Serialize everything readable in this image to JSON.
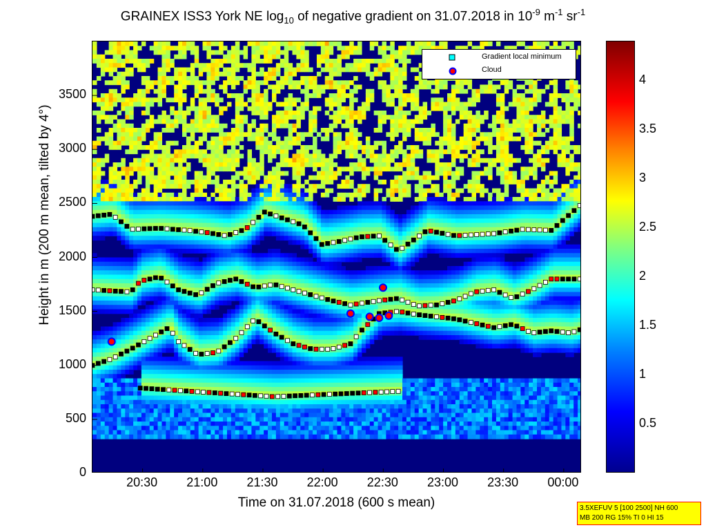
{
  "title_parts": {
    "pre": "GRAINEX ISS3 York NE log",
    "sub1": "10",
    "mid": " of negative gradient on 31.07.2018 in 10",
    "sup1": "-9",
    "mid2": " m",
    "sup2": "-1",
    "mid3": " sr",
    "sup3": "-1"
  },
  "chart_data": {
    "type": "heatmap",
    "xlabel": "Time on 31.07.2018 (600 s mean)",
    "ylabel": "Height in m (200 m mean, tilted by 4°)",
    "x_ticks": [
      "20:30",
      "21:00",
      "21:30",
      "22:00",
      "22:30",
      "23:00",
      "23:30",
      "00:00"
    ],
    "x_range": [
      "20:05",
      "00:09"
    ],
    "y_ticks": [
      0,
      500,
      1000,
      1500,
      2000,
      2500,
      3000,
      3500
    ],
    "y_range": [
      0,
      4000
    ],
    "colorbar": {
      "ticks": [
        0.5,
        1,
        1.5,
        2,
        2.5,
        3,
        3.5,
        4
      ],
      "range": [
        0,
        4.4
      ],
      "colormap": "jet"
    },
    "legend": {
      "placement": "top-right",
      "entries": [
        {
          "label": "Gradient local minimum",
          "marker": "square",
          "color": "#00ffff"
        },
        {
          "label": "Cloud",
          "marker": "circle",
          "color": "#ff0000",
          "edge": "#0000ff"
        }
      ]
    },
    "gradient_minimum_layers": [
      {
        "name": "layer_1",
        "points": [
          [
            0,
            1000
          ],
          [
            10,
            1060
          ],
          [
            20,
            1150
          ],
          [
            30,
            1250
          ],
          [
            40,
            1350
          ],
          [
            45,
            1220
          ],
          [
            55,
            1100
          ],
          [
            65,
            1120
          ],
          [
            75,
            1250
          ],
          [
            85,
            1430
          ],
          [
            95,
            1300
          ],
          [
            105,
            1200
          ],
          [
            115,
            1150
          ],
          [
            125,
            1150
          ],
          [
            135,
            1200
          ],
          [
            140,
            1310
          ],
          [
            150,
            1480
          ],
          [
            160,
            1500
          ],
          [
            170,
            1470
          ],
          [
            180,
            1450
          ],
          [
            190,
            1430
          ],
          [
            200,
            1390
          ],
          [
            210,
            1350
          ],
          [
            220,
            1380
          ],
          [
            230,
            1300
          ],
          [
            240,
            1320
          ],
          [
            250,
            1300
          ],
          [
            255,
            1330
          ]
        ]
      },
      {
        "name": "layer_2",
        "points": [
          [
            0,
            1700
          ],
          [
            10,
            1690
          ],
          [
            20,
            1680
          ],
          [
            25,
            1780
          ],
          [
            35,
            1820
          ],
          [
            45,
            1700
          ],
          [
            55,
            1650
          ],
          [
            65,
            1760
          ],
          [
            75,
            1800
          ],
          [
            85,
            1720
          ],
          [
            95,
            1750
          ],
          [
            105,
            1700
          ],
          [
            115,
            1650
          ],
          [
            125,
            1600
          ],
          [
            135,
            1560
          ],
          [
            150,
            1600
          ],
          [
            160,
            1620
          ],
          [
            170,
            1550
          ],
          [
            180,
            1560
          ],
          [
            190,
            1600
          ],
          [
            200,
            1680
          ],
          [
            210,
            1700
          ],
          [
            220,
            1620
          ],
          [
            230,
            1700
          ],
          [
            240,
            1800
          ],
          [
            255,
            1800
          ]
        ]
      },
      {
        "name": "layer_3",
        "points": [
          [
            0,
            2380
          ],
          [
            10,
            2400
          ],
          [
            20,
            2260
          ],
          [
            35,
            2270
          ],
          [
            50,
            2250
          ],
          [
            60,
            2230
          ],
          [
            70,
            2200
          ],
          [
            80,
            2260
          ],
          [
            90,
            2420
          ],
          [
            100,
            2360
          ],
          [
            110,
            2300
          ],
          [
            120,
            2120
          ],
          [
            130,
            2150
          ],
          [
            140,
            2190
          ],
          [
            150,
            2200
          ],
          [
            160,
            2060
          ],
          [
            175,
            2250
          ],
          [
            190,
            2200
          ],
          [
            210,
            2220
          ],
          [
            225,
            2260
          ],
          [
            240,
            2250
          ],
          [
            255,
            2480
          ]
        ]
      },
      {
        "name": "layer_4",
        "points": [
          [
            25,
            790
          ],
          [
            95,
            710
          ],
          [
            160,
            760
          ]
        ]
      }
    ],
    "cloud_points": [
      [
        10,
        1220
      ],
      [
        135,
        1480
      ],
      [
        145,
        1450
      ],
      [
        150,
        1440
      ],
      [
        155,
        1460
      ],
      [
        152,
        1720
      ]
    ]
  },
  "info_box": {
    "line1": "3.5XEFUV 5 [100 2500] NH 600",
    "line2": "MB 200 RG 15% TI 0 HI 15"
  }
}
